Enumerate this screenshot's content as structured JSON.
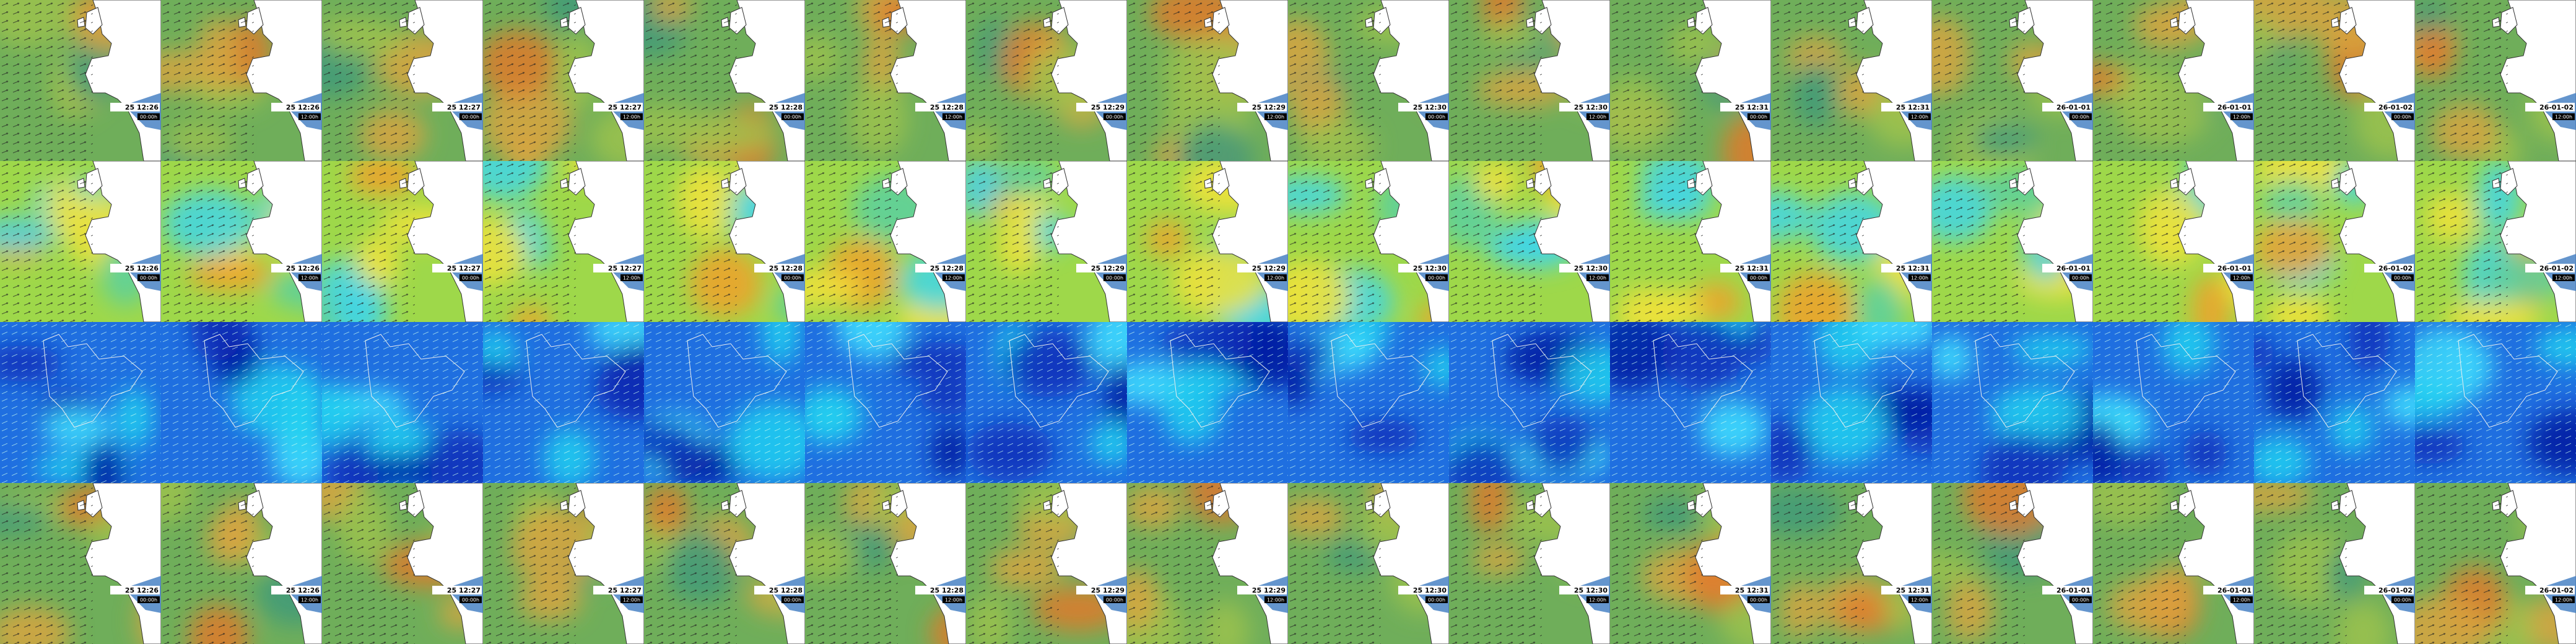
{
  "dates": [
    "25 12:26",
    "25 12:26",
    "25 12:27",
    "25 12:27",
    "25 12:28",
    "25 12:28",
    "25 12:29",
    "25 12:29",
    "25 12:30",
    "25 12:30",
    "25 12:31",
    "25 12:31",
    "26-01-01",
    "26-01-01",
    "26-01-02",
    "26-01-02"
  ],
  "runs": [
    "00:00h",
    "12:00h",
    "00:00h",
    "12:00h",
    "00:00h",
    "12:00h",
    "00:00h",
    "12:00h",
    "00:00h",
    "12:00h",
    "00:00h",
    "12:00h",
    "00:00h",
    "12:00h",
    "00:00h",
    "12:00h"
  ]
}
